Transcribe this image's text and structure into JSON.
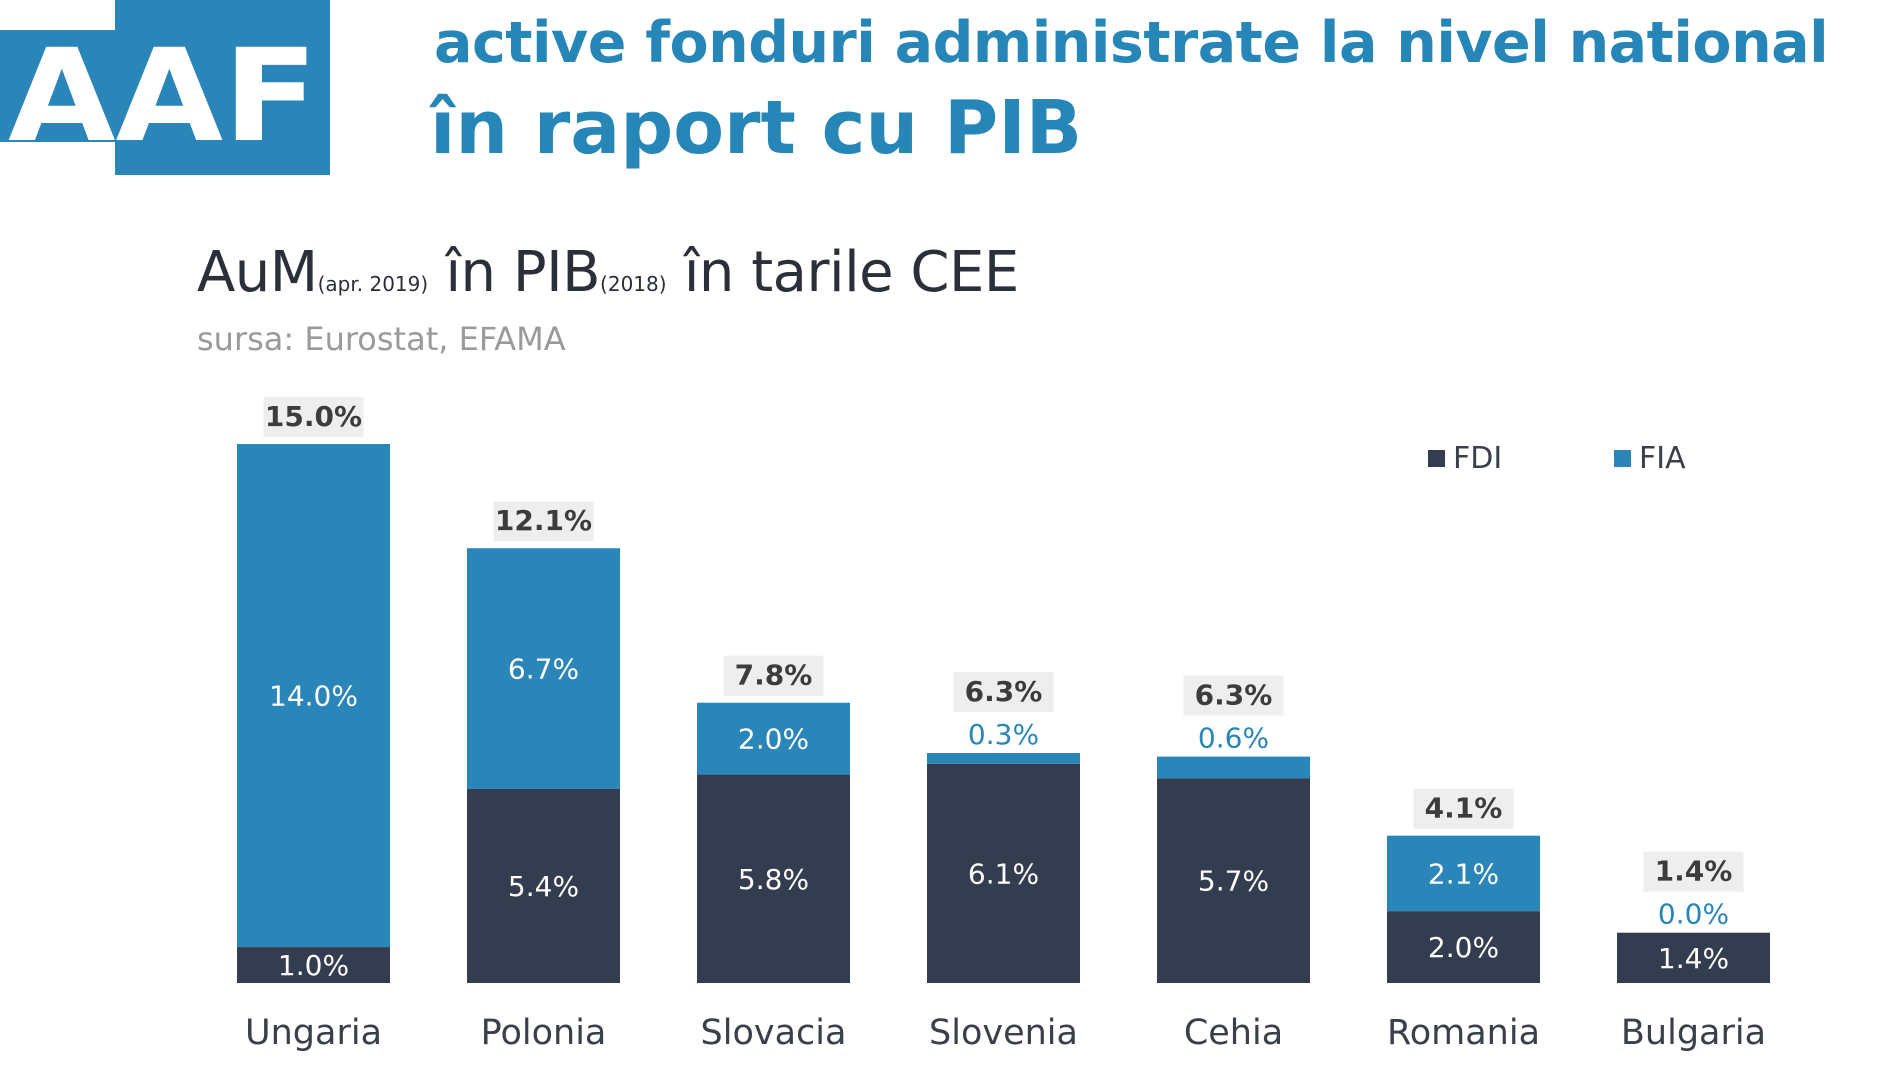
{
  "logo": {
    "text": "AAF"
  },
  "header": {
    "line1": "active fonduri administrate la nivel national",
    "line2": "în raport cu PIB"
  },
  "chart_title": {
    "part1": "AuM",
    "part1_sub": "(apr. 2019)",
    "part2": " în PIB",
    "part2_sub": "(2018)",
    "part3": " în tarile CEE"
  },
  "source": "sursa: Eurostat, EFAMA",
  "colors": {
    "fdi": "#333d4f",
    "fia": "#2a86b8",
    "label_light": "#ffffff",
    "total_bg": "#eeeeee",
    "total_text": "#3c3c3c",
    "category_text": "#3a3f49"
  },
  "chart_data": {
    "type": "bar",
    "stacked": true,
    "categories": [
      "Ungaria",
      "Polonia",
      "Slovacia",
      "Slovenia",
      "Cehia",
      "Romania",
      "Bulgaria"
    ],
    "series": [
      {
        "name": "FDI",
        "values": [
          1.0,
          5.4,
          5.8,
          6.1,
          5.7,
          2.0,
          1.4
        ],
        "labels": [
          "1.0%",
          "5.4%",
          "5.8%",
          "6.1%",
          "5.7%",
          "2.0%",
          "1.4%"
        ]
      },
      {
        "name": "FIA",
        "values": [
          14.0,
          6.7,
          2.0,
          0.3,
          0.6,
          2.1,
          0.0
        ],
        "labels": [
          "14.0%",
          "6.7%",
          "2.0%",
          "0.3%",
          "0.6%",
          "2.1%",
          "0.0%"
        ]
      }
    ],
    "totals": [
      "15.0%",
      "12.1%",
      "7.8%",
      "6.3%",
      "6.3%",
      "4.1%",
      "1.4%"
    ],
    "ylim": [
      0,
      15
    ],
    "legend_position": "top-right",
    "grid": false
  }
}
